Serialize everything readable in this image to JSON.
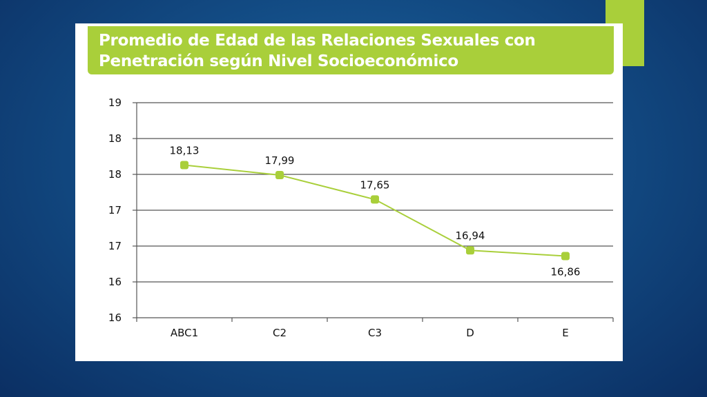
{
  "title": {
    "line1": "Promedio de Edad de las Relaciones Sexuales con",
    "line2": "Penetración según Nivel Socioeconómico"
  },
  "colors": {
    "accent": "#a9cf3a",
    "series": "#a9cf3a",
    "grid": "#555555"
  },
  "chart_data": {
    "type": "line",
    "title": "Promedio de Edad de las Relaciones Sexuales con Penetración según Nivel Socioeconómico",
    "categories": [
      "ABC1",
      "C2",
      "C3",
      "D",
      "E"
    ],
    "series": [
      {
        "values": [
          18.13,
          17.99,
          17.65,
          16.94,
          16.86
        ]
      }
    ],
    "data_labels": [
      "18,13",
      "17,99",
      "17,65",
      "16,94",
      "16,86"
    ],
    "ylim": [
      16,
      19
    ],
    "y_tick_labels": [
      "19",
      "18",
      "18",
      "17",
      "17",
      "16",
      "16"
    ],
    "grid": true,
    "legend": "none",
    "xlabel": "",
    "ylabel": ""
  }
}
